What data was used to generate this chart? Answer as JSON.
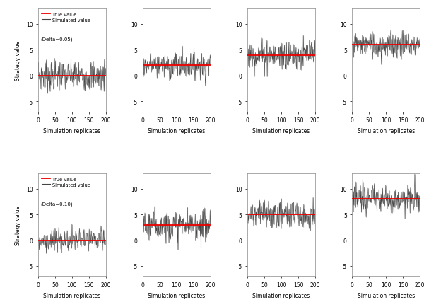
{
  "true_values_row0": [
    0,
    2,
    4,
    6
  ],
  "true_values_row1": [
    0,
    3,
    5,
    8
  ],
  "delta_labels": [
    "(Delta=0.05)",
    "(Delta=0.10)"
  ],
  "ylabel": "Strategy value",
  "xlabel": "Simulation replicates",
  "legend_true": "True value",
  "legend_sim": "Simulated value",
  "true_color": "#EE0000",
  "sim_color": "#444444",
  "sim_color_light": "#aaaaaa",
  "ylim": [
    -7,
    13
  ],
  "yticks": [
    -5,
    0,
    5,
    10
  ],
  "xlim": [
    0,
    200
  ],
  "xticks": [
    0,
    50,
    100,
    150,
    200
  ],
  "n_sims": 200,
  "noise_scale_row0": [
    1.5,
    1.3,
    1.5,
    1.3
  ],
  "noise_scale_row1": [
    1.2,
    1.5,
    1.5,
    1.3
  ],
  "bg_color": "#ffffff",
  "seed": 7
}
